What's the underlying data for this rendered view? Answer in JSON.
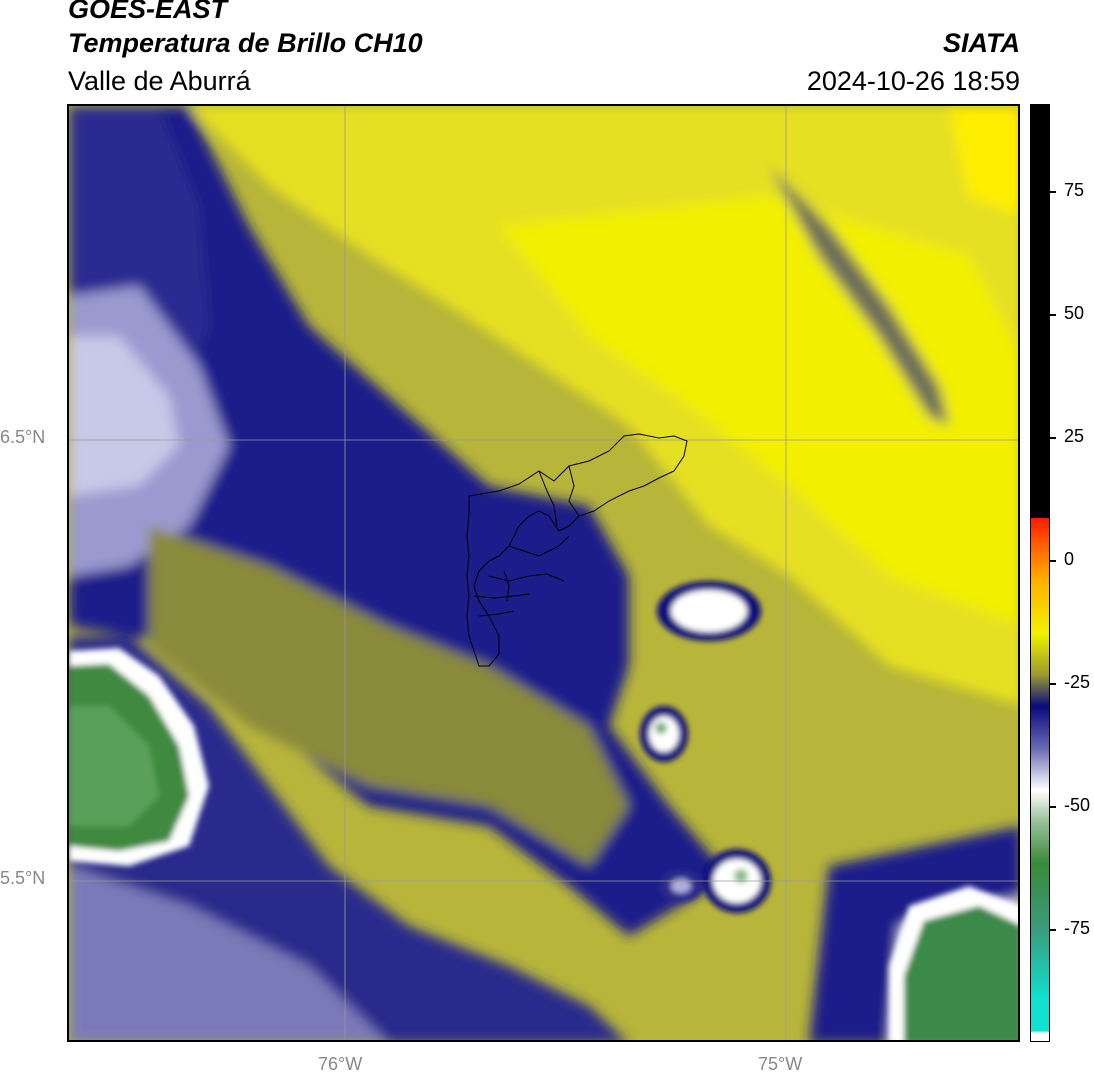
{
  "header": {
    "satellite": "GOES-EAST",
    "product": "Temperatura de Brillo CH10",
    "region": "Valle de Aburrá",
    "organization": "SIATA",
    "timestamp": "2024-10-26 18:59"
  },
  "axes": {
    "lat_labels": [
      "6.5°N",
      "5.5°N"
    ],
    "lon_labels": [
      "76°W",
      "75°W"
    ]
  },
  "colorbar": {
    "tick_labels": [
      "75",
      "50",
      "25",
      "0",
      "-25",
      "-50",
      "-75"
    ],
    "colors": {
      "warm_black": "#000000",
      "red": "#ff1a00",
      "orange": "#ff9900",
      "yellow": "#f2f200",
      "olive": "#9a9a30",
      "navy": "#0a0a80",
      "lavender": "#a0a0d0",
      "white": "#ffffff",
      "green": "#3a8a3a",
      "cyan": "#10e0d0"
    }
  }
}
